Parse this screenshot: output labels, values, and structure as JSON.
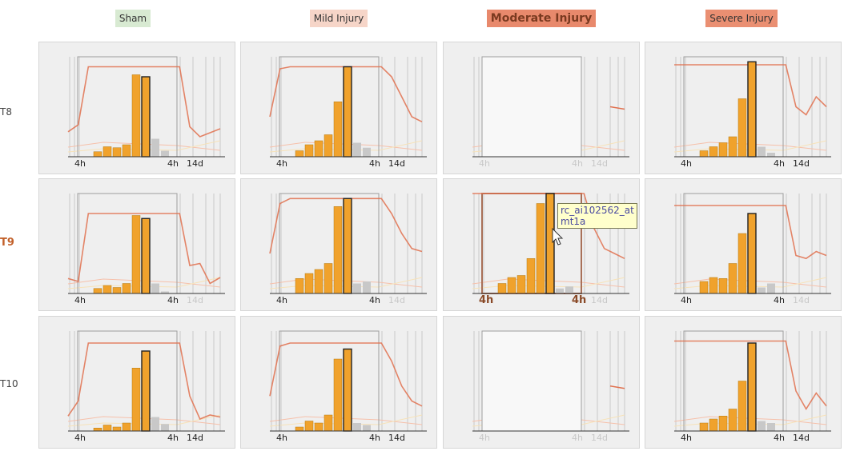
{
  "columns": [
    {
      "label": "Sham",
      "bg": "#d8ead2"
    },
    {
      "label": "Mild Injury",
      "bg": "#f6d5c8"
    },
    {
      "label": "Moderate Injury",
      "bg": "#e8896c"
    },
    {
      "label": "Severe Injury",
      "bg": "#ea8f72"
    }
  ],
  "rows": [
    {
      "label": "T8",
      "active": false
    },
    {
      "label": "T9",
      "active": true
    },
    {
      "label": "T10",
      "active": false
    }
  ],
  "x_labels": {
    "start": "4h",
    "mid": "4h",
    "end": "14d"
  },
  "tooltip": {
    "line1": "rc_ai102562_at",
    "line2": "mt1a"
  },
  "colors": {
    "bar": "#f0a22c",
    "bar_stroke": "#b57a10",
    "gray_bar": "#c8c8c8",
    "line": "#e0704e",
    "faint_line": "#f6c0aa",
    "cell_bg": "#efefef",
    "frame": "#9e9e9e"
  },
  "chart_data": [
    {
      "type": "bar",
      "row": "T8",
      "column": "Sham",
      "series": [
        {
          "name": "",
          "values": [
            5,
            10,
            9,
            12,
            82,
            80,
            18,
            6
          ]
        }
      ],
      "ylim": [
        0,
        100
      ],
      "highlight_index": 5,
      "line_values": [
        25,
        32,
        90,
        90,
        90,
        90,
        90,
        90,
        90,
        90,
        90,
        90,
        30,
        20,
        24,
        28
      ]
    },
    {
      "type": "bar",
      "row": "T8",
      "column": "Mild Injury",
      "series": [
        {
          "name": "",
          "values": [
            6,
            12,
            16,
            22,
            55,
            90,
            14,
            9
          ]
        }
      ],
      "ylim": [
        0,
        100
      ],
      "highlight_index": 5,
      "line_values": [
        40,
        88,
        90,
        90,
        90,
        90,
        90,
        90,
        90,
        90,
        90,
        90,
        80,
        60,
        40,
        35
      ]
    },
    {
      "type": "bar",
      "row": "T8",
      "column": "Moderate Injury",
      "empty": true,
      "series": [],
      "ylim": [
        0,
        100
      ],
      "line_values": [
        50,
        48
      ]
    },
    {
      "type": "bar",
      "row": "T8",
      "column": "Severe Injury",
      "series": [
        {
          "name": "",
          "values": [
            6,
            10,
            14,
            20,
            58,
            95,
            10,
            4
          ]
        }
      ],
      "ylim": [
        0,
        100
      ],
      "highlight_index": 5,
      "line_values": [
        92,
        92,
        92,
        92,
        92,
        92,
        92,
        92,
        92,
        92,
        92,
        92,
        50,
        42,
        60,
        50
      ]
    },
    {
      "type": "bar",
      "row": "T9",
      "column": "Sham",
      "series": [
        {
          "name": "",
          "values": [
            5,
            8,
            6,
            10,
            78,
            75,
            10,
            2
          ]
        }
      ],
      "ylim": [
        0,
        100
      ],
      "highlight_index": 5,
      "line_values": [
        15,
        12,
        80,
        80,
        80,
        80,
        80,
        80,
        80,
        80,
        80,
        80,
        28,
        30,
        10,
        16
      ]
    },
    {
      "type": "bar",
      "row": "T9",
      "column": "Mild Injury",
      "series": [
        {
          "name": "",
          "values": [
            15,
            20,
            24,
            30,
            87,
            95,
            10,
            12
          ]
        }
      ],
      "ylim": [
        0,
        100
      ],
      "highlight_index": 5,
      "line_values": [
        40,
        90,
        95,
        95,
        95,
        95,
        95,
        95,
        95,
        95,
        95,
        95,
        80,
        60,
        45,
        42
      ]
    },
    {
      "type": "bar",
      "row": "T9",
      "column": "Moderate Injury",
      "selected": true,
      "series": [
        {
          "name": "",
          "values": [
            10,
            16,
            18,
            35,
            90,
            100,
            5,
            7
          ]
        }
      ],
      "ylim": [
        0,
        100
      ],
      "highlight_index": 5,
      "line_values": [
        100,
        100,
        100,
        100,
        100,
        100,
        100,
        100,
        100,
        100,
        100,
        100,
        65,
        45,
        40,
        35
      ]
    },
    {
      "type": "bar",
      "row": "T9",
      "column": "Severe Injury",
      "series": [
        {
          "name": "",
          "values": [
            12,
            16,
            15,
            30,
            60,
            80,
            6,
            10
          ]
        }
      ],
      "ylim": [
        0,
        100
      ],
      "highlight_index": 5,
      "line_values": [
        88,
        88,
        88,
        88,
        88,
        88,
        88,
        88,
        88,
        88,
        88,
        88,
        38,
        35,
        42,
        38
      ]
    },
    {
      "type": "bar",
      "row": "T10",
      "column": "Sham",
      "series": [
        {
          "name": "",
          "values": [
            3,
            6,
            4,
            8,
            63,
            80,
            14,
            7
          ]
        }
      ],
      "ylim": [
        0,
        100
      ],
      "highlight_index": 5,
      "line_values": [
        15,
        30,
        88,
        88,
        88,
        88,
        88,
        88,
        88,
        88,
        88,
        88,
        35,
        12,
        16,
        14
      ]
    },
    {
      "type": "bar",
      "row": "T10",
      "column": "Mild Injury",
      "series": [
        {
          "name": "",
          "values": [
            4,
            10,
            8,
            16,
            72,
            82,
            8,
            6
          ]
        }
      ],
      "ylim": [
        0,
        100
      ],
      "highlight_index": 5,
      "line_values": [
        35,
        85,
        88,
        88,
        88,
        88,
        88,
        88,
        88,
        88,
        88,
        88,
        70,
        45,
        30,
        25
      ]
    },
    {
      "type": "bar",
      "row": "T10",
      "column": "Moderate Injury",
      "empty": true,
      "series": [],
      "ylim": [
        0,
        100
      ],
      "line_values": [
        45,
        35
      ]
    },
    {
      "type": "bar",
      "row": "T10",
      "column": "Severe Injury",
      "series": [
        {
          "name": "",
          "values": [
            8,
            12,
            15,
            22,
            50,
            88,
            10,
            8
          ]
        }
      ],
      "ylim": [
        0,
        100
      ],
      "highlight_index": 5,
      "line_values": [
        90,
        90,
        90,
        90,
        90,
        90,
        90,
        90,
        90,
        90,
        90,
        90,
        40,
        22,
        38,
        25
      ]
    }
  ]
}
